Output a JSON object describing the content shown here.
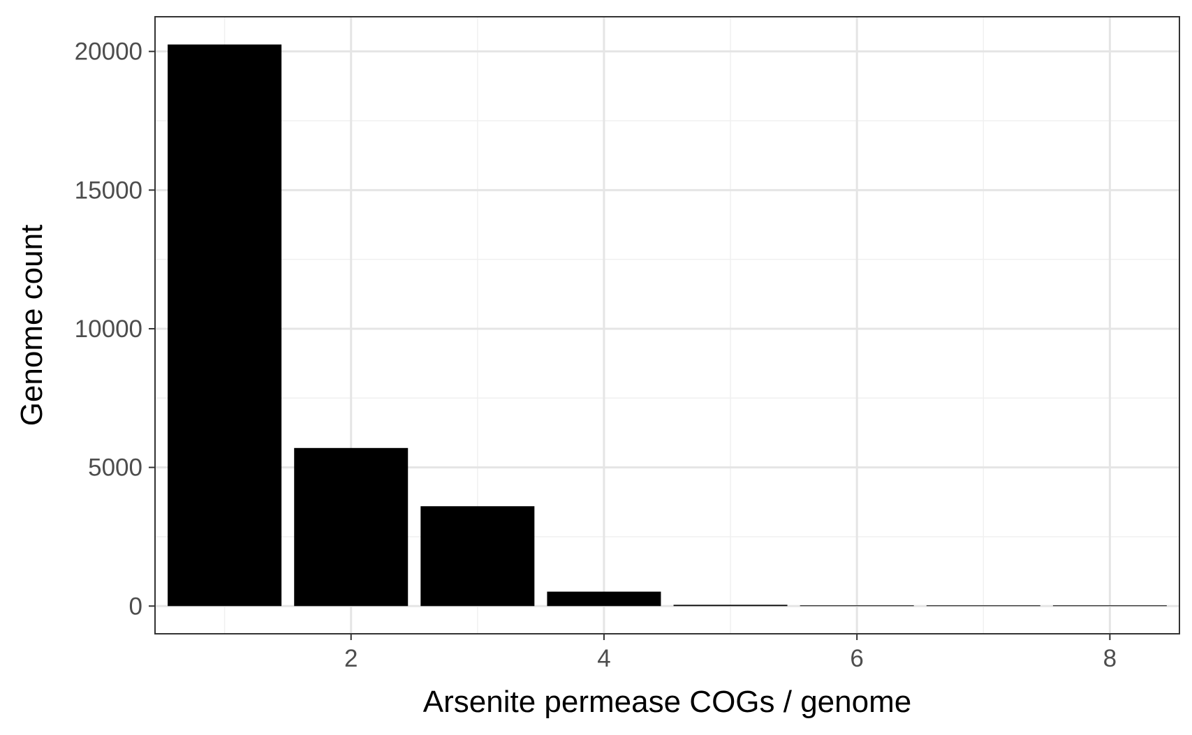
{
  "chart_data": {
    "type": "bar",
    "title": "",
    "xlabel": "Arsenite permease COGs / genome",
    "ylabel": "Genome count",
    "x": [
      1,
      2,
      3,
      4,
      5,
      6,
      7,
      8
    ],
    "values": [
      20250,
      5700,
      3600,
      520,
      45,
      15,
      5,
      2
    ],
    "xlim": [
      0.45,
      8.55
    ],
    "ylim": [
      -1000,
      21250
    ],
    "x_ticks": [
      2,
      4,
      6,
      8
    ],
    "x_tick_labels": [
      "2",
      "4",
      "6",
      "8"
    ],
    "y_ticks": [
      0,
      5000,
      10000,
      15000,
      20000
    ],
    "y_tick_labels": [
      "0",
      "5000",
      "10000",
      "15000",
      "20000"
    ],
    "x_minor_gridlines": [
      1,
      3,
      5,
      7
    ],
    "y_minor_gridlines": [
      2500,
      7500,
      12500,
      17500
    ],
    "grid": true,
    "legend": "none",
    "colors": {
      "bar": "#000000",
      "grid_major": "#e5e5e5",
      "grid_minor": "#f0f0f0",
      "panel_border": "#333333",
      "tick_label": "#4d4d4d",
      "background": "#ffffff"
    }
  }
}
